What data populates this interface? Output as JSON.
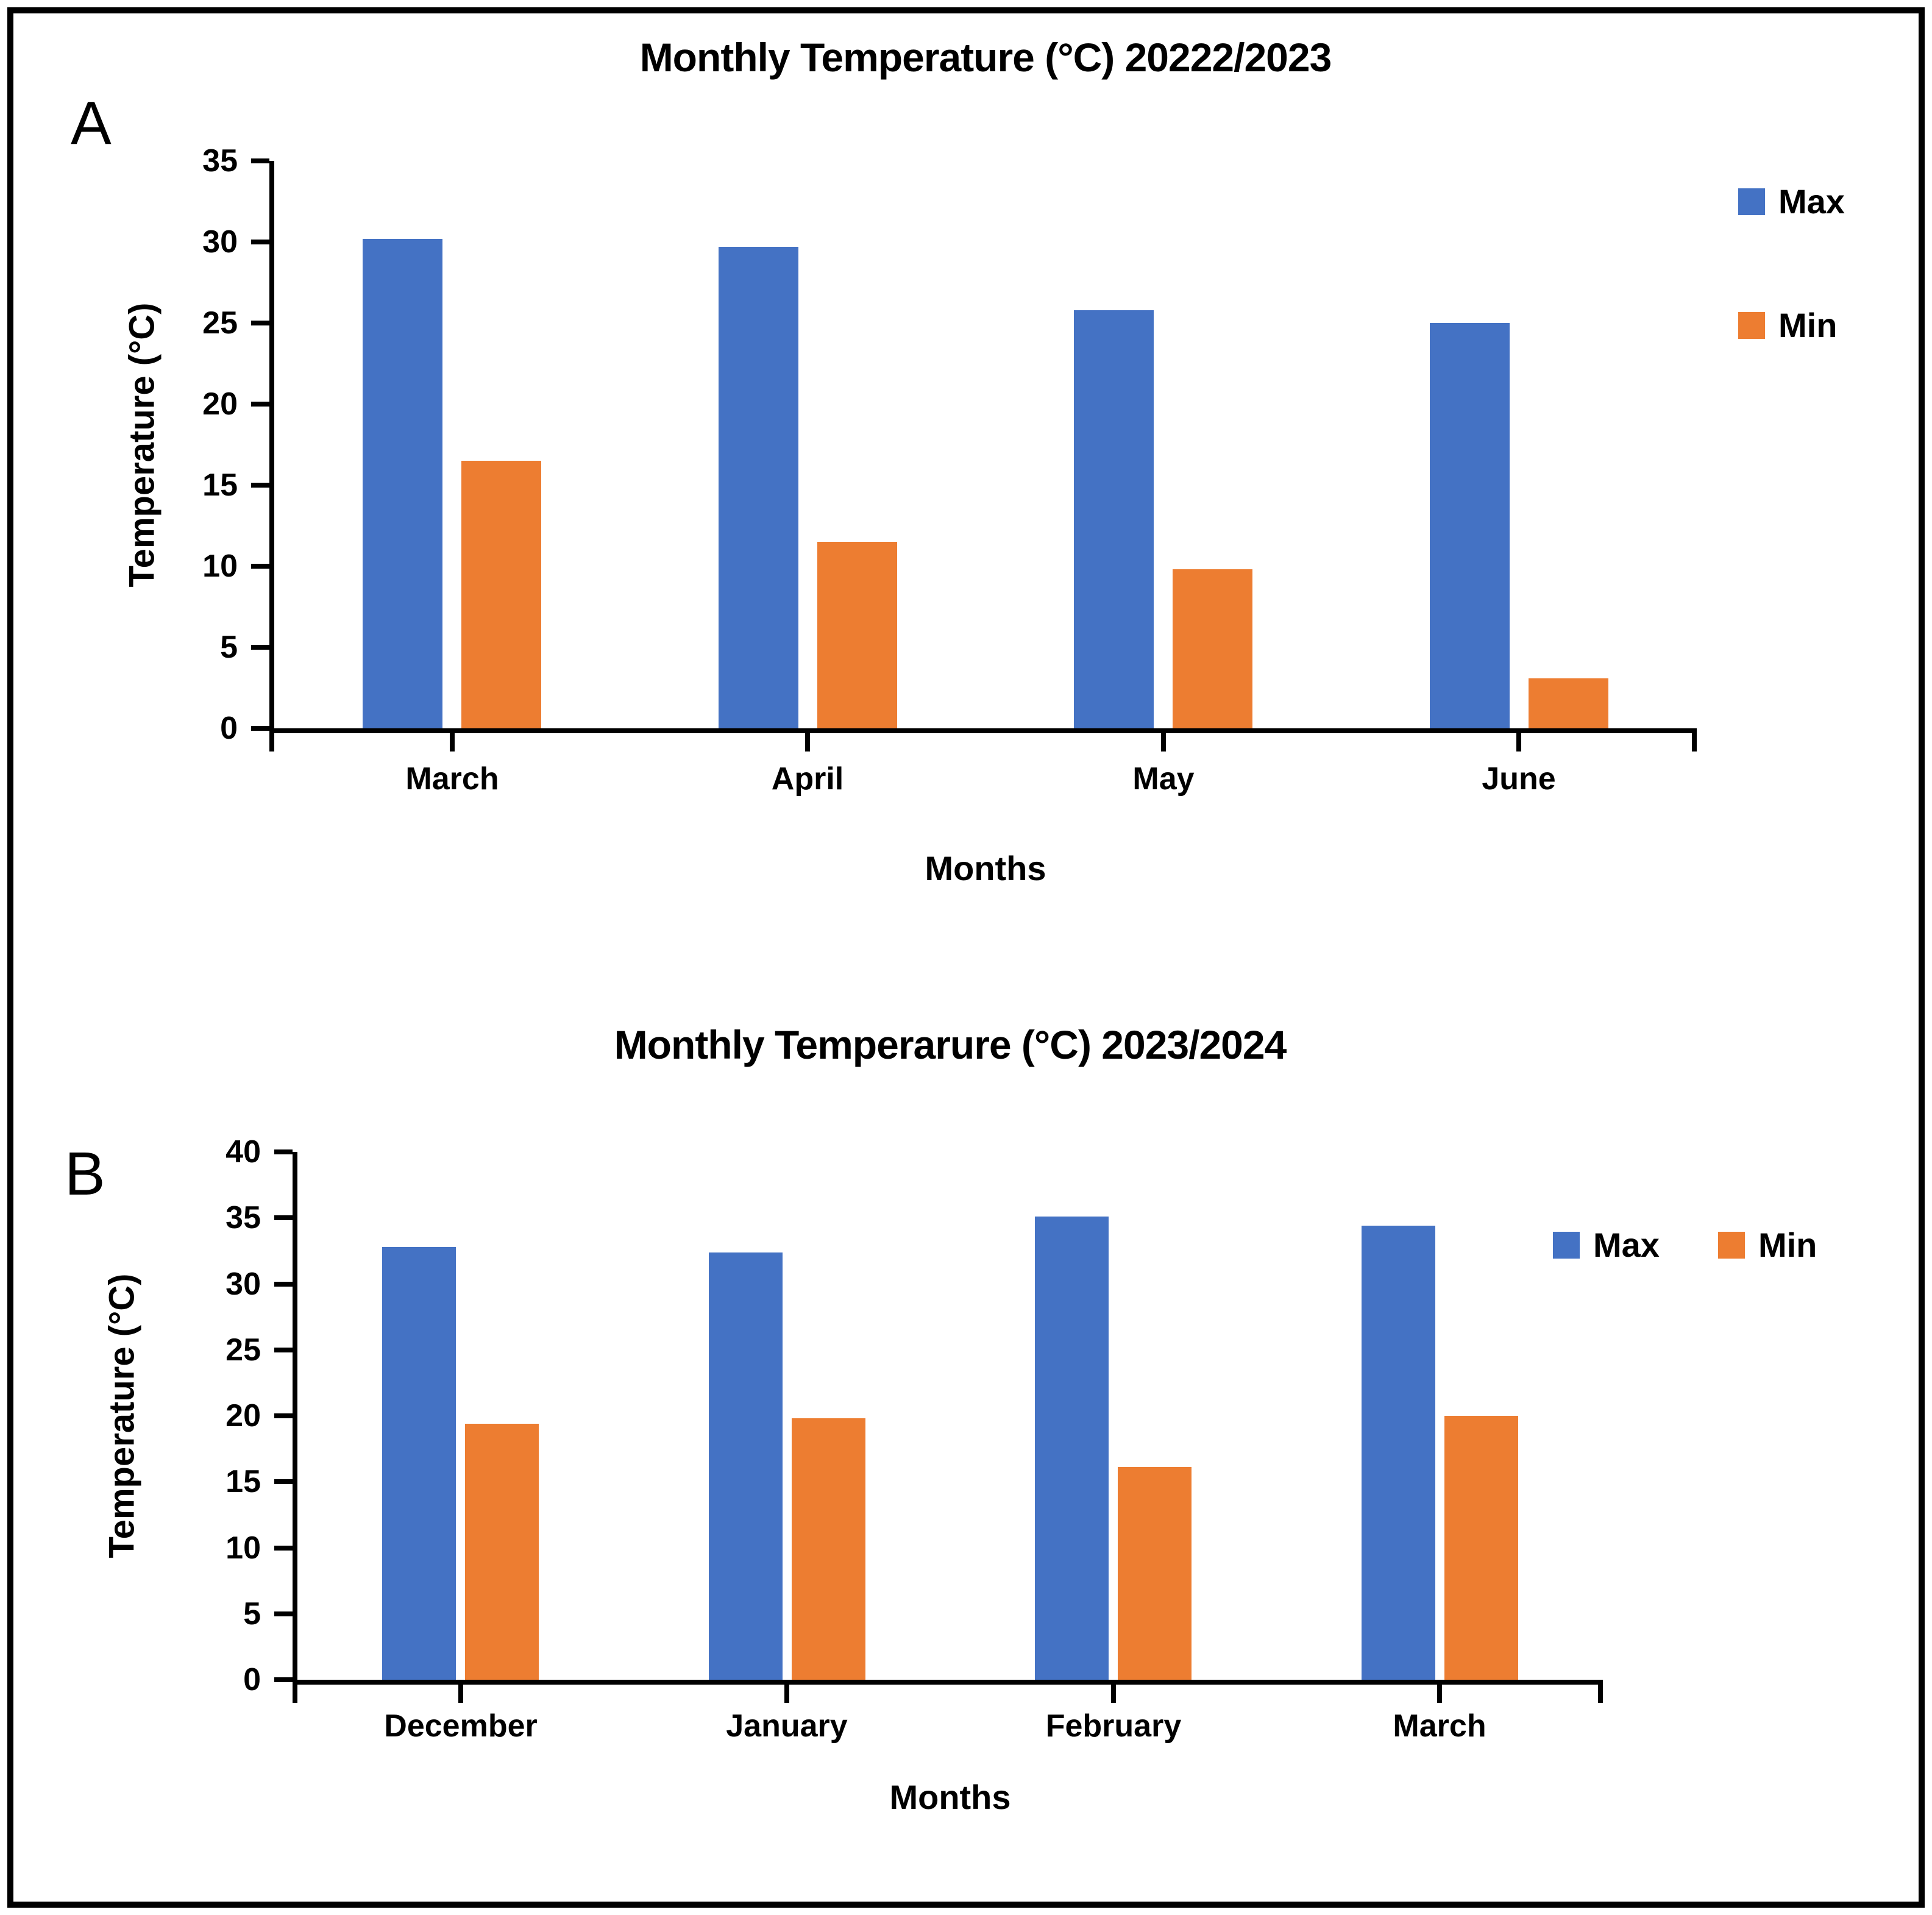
{
  "figure": {
    "panel_a_label": "A",
    "panel_b_label": "B",
    "background": "#ffffff",
    "border_color": "#000000",
    "axis_color": "#000000"
  },
  "chart_data": [
    {
      "id": "a",
      "type": "bar",
      "title": "Monthly Temperature (°C) 20222/2023",
      "xlabel": "Months",
      "ylabel": "Temperature (°C)",
      "ylim": [
        0,
        35
      ],
      "yticks": [
        0,
        5,
        10,
        15,
        20,
        25,
        30,
        35
      ],
      "grid": false,
      "legend_position": "right-vertical",
      "categories": [
        "March",
        "April",
        "May",
        "June"
      ],
      "series": [
        {
          "name": "Max",
          "color": "#4472C4",
          "values": [
            30.2,
            29.7,
            25.8,
            25.0
          ]
        },
        {
          "name": "Min",
          "color": "#ED7D31",
          "values": [
            16.5,
            11.5,
            9.8,
            3.1
          ]
        }
      ]
    },
    {
      "id": "b",
      "type": "bar",
      "title": "Monthly Temperarure (°C) 2023/2024",
      "xlabel": "Months",
      "ylabel": "Temperature (°C)",
      "ylim": [
        0,
        40
      ],
      "yticks": [
        0,
        5,
        10,
        15,
        20,
        25,
        30,
        35,
        40
      ],
      "grid": false,
      "legend_position": "top-right-horizontal",
      "categories": [
        "December",
        "January",
        "February",
        "March"
      ],
      "series": [
        {
          "name": "Max",
          "color": "#4472C4",
          "values": [
            32.8,
            32.4,
            35.1,
            34.4
          ]
        },
        {
          "name": "Min",
          "color": "#ED7D31",
          "values": [
            19.4,
            19.8,
            16.1,
            20.0
          ]
        }
      ]
    }
  ]
}
